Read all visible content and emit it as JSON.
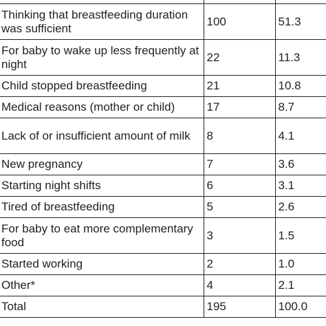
{
  "table": {
    "rows": [
      [
        "Thinking that breastfeeding duration was sufficient",
        "100",
        "51.3"
      ],
      [
        "For baby to wake up less frequently at night",
        "22",
        "11.3"
      ],
      [
        "Child stopped breastfeeding",
        "21",
        "10.8"
      ],
      [
        "Medical reasons (mother or child)",
        "17",
        "8.7"
      ],
      [
        "Lack of or insufficient amount of milk",
        "8",
        "4.1"
      ],
      [
        "New pregnancy",
        "7",
        "3.6"
      ],
      [
        "Starting night shifts",
        "6",
        "3.1"
      ],
      [
        "Tired of breastfeeding",
        "5",
        "2.6"
      ],
      [
        "For baby to eat more complementary food",
        "3",
        "1.5"
      ],
      [
        "Started working",
        "2",
        "1.0"
      ],
      [
        "Other*",
        "4",
        "2.1"
      ],
      [
        "Total",
        "195",
        "100.0"
      ]
    ]
  }
}
